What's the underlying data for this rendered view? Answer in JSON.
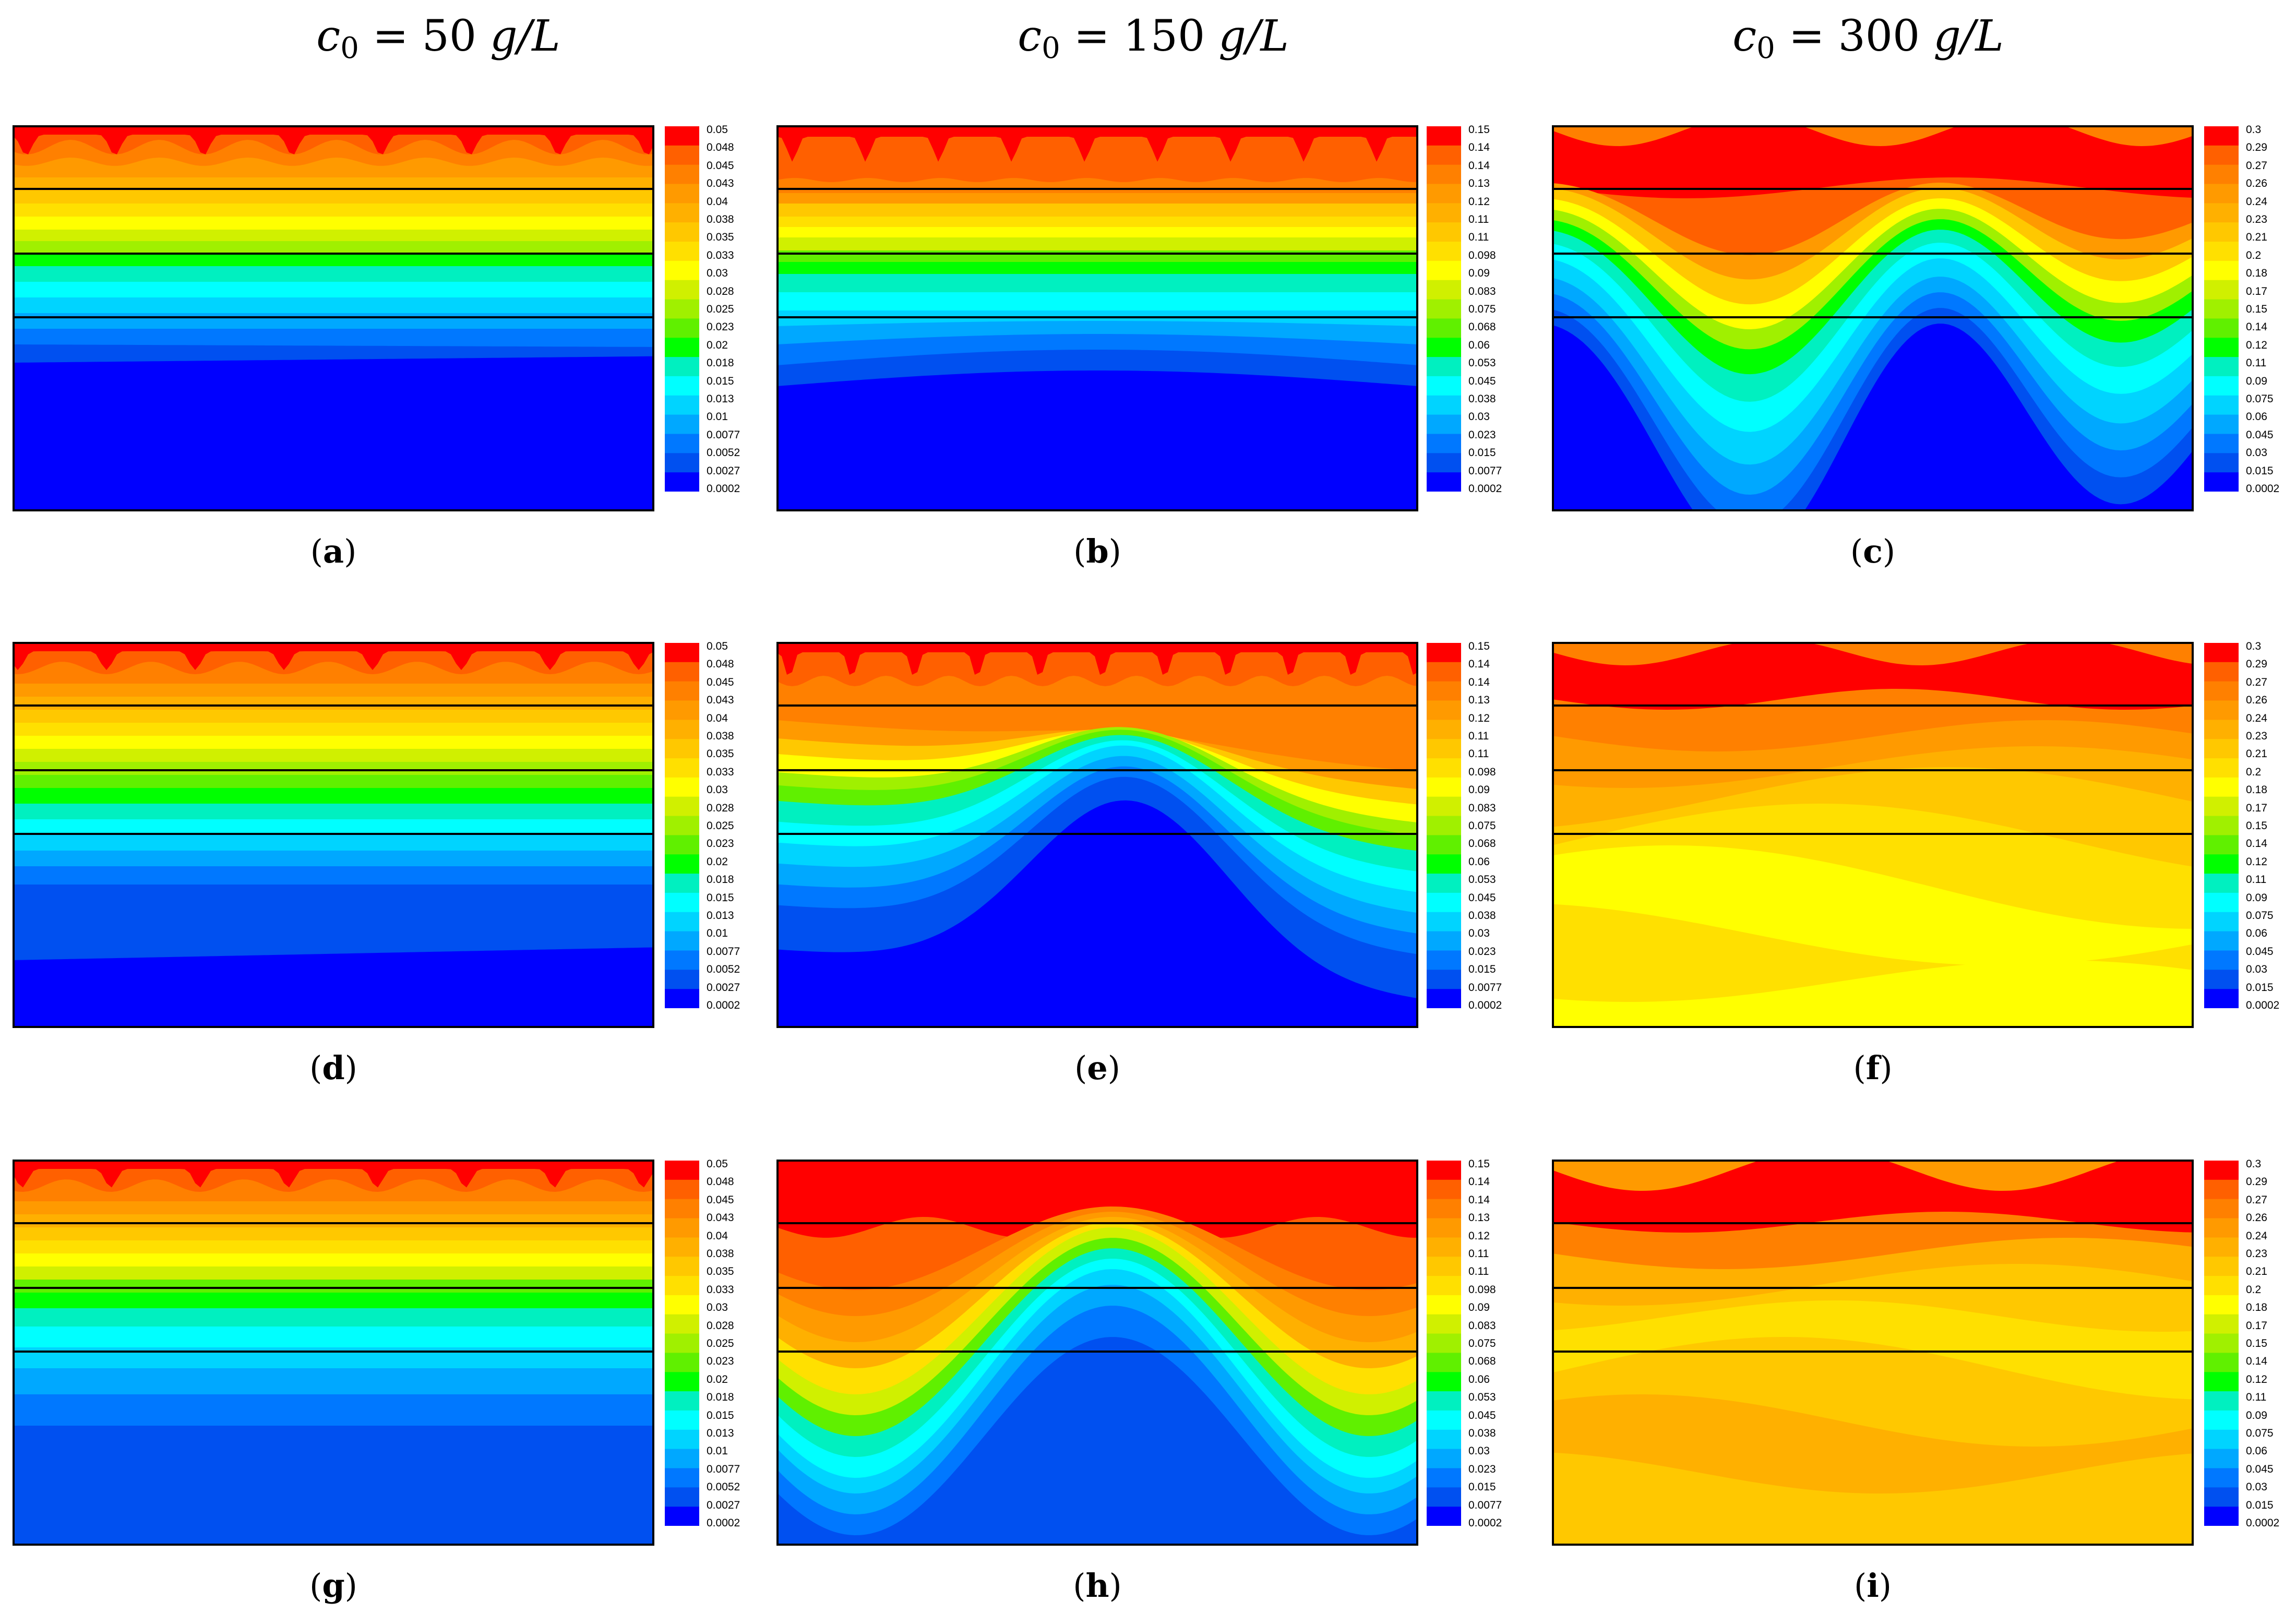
{
  "columns": [
    {
      "prefix": "c",
      "sub": "0",
      "eq": " = 50 ",
      "unit": "g/L"
    },
    {
      "prefix": "c",
      "sub": "0",
      "eq": " = 150 ",
      "unit": "g/L"
    },
    {
      "prefix": "c",
      "sub": "0",
      "eq": " = 300 ",
      "unit": "g/L"
    }
  ],
  "colorscale": [
    "#0000ff",
    "#0050f0",
    "#0078ff",
    "#00a8ff",
    "#00d4ff",
    "#00ffff",
    "#00f0c0",
    "#00ff00",
    "#60f000",
    "#a0f000",
    "#d0f000",
    "#ffff00",
    "#ffe000",
    "#ffc800",
    "#ffb000",
    "#ff9a00",
    "#ff8000",
    "#ff6000",
    "#ff0000"
  ],
  "colorbars": [
    {
      "ticks": [
        "0.05",
        "0.048",
        "0.045",
        "0.043",
        "0.04",
        "0.038",
        "0.035",
        "0.033",
        "0.03",
        "0.028",
        "0.025",
        "0.023",
        "0.02",
        "0.018",
        "0.015",
        "0.013",
        "0.01",
        "0.0077",
        "0.0052",
        "0.0027",
        "0.0002"
      ]
    },
    {
      "ticks": [
        "0.15",
        "0.14",
        "0.14",
        "0.13",
        "0.12",
        "0.11",
        "0.11",
        "0.098",
        "0.09",
        "0.083",
        "0.075",
        "0.068",
        "0.06",
        "0.053",
        "0.045",
        "0.038",
        "0.03",
        "0.023",
        "0.015",
        "0.0077",
        "0.0002"
      ]
    },
    {
      "ticks": [
        "0.3",
        "0.29",
        "0.27",
        "0.26",
        "0.24",
        "0.23",
        "0.21",
        "0.2",
        "0.18",
        "0.17",
        "0.15",
        "0.14",
        "0.12",
        "0.11",
        "0.09",
        "0.075",
        "0.06",
        "0.045",
        "0.03",
        "0.015",
        "0.0002"
      ]
    }
  ],
  "panels": [
    {
      "label": "a",
      "col": 0,
      "row": 0
    },
    {
      "label": "b",
      "col": 1,
      "row": 0
    },
    {
      "label": "c",
      "col": 2,
      "row": 0
    },
    {
      "label": "d",
      "col": 0,
      "row": 1
    },
    {
      "label": "e",
      "col": 1,
      "row": 1
    },
    {
      "label": "f",
      "col": 2,
      "row": 1
    },
    {
      "label": "g",
      "col": 0,
      "row": 2
    },
    {
      "label": "h",
      "col": 1,
      "row": 2
    },
    {
      "label": "i",
      "col": 2,
      "row": 2
    }
  ]
}
